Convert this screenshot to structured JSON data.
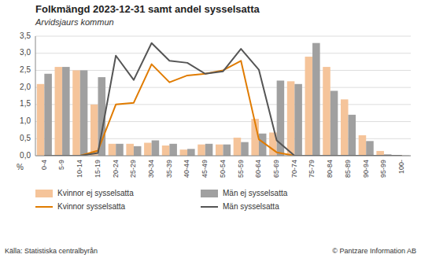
{
  "chart_data": {
    "type": "bar",
    "title": "Folkmängd 2023-12-31 samt andel sysselsatta",
    "subtitle": "Arvidsjaurs kommun",
    "ylabel": "%",
    "annotations": [
      "Källa: Statistiska centralbyrån",
      "© Pantzare Information AB"
    ],
    "categories": [
      "0-4",
      "5-9",
      "10-14",
      "15-19",
      "20-24",
      "25-29",
      "30-34",
      "35-39",
      "40-44",
      "45-49",
      "50-54",
      "55-59",
      "60-64",
      "65-69",
      "70-74",
      "75-79",
      "80-84",
      "85-89",
      "90-94",
      "95-99",
      "100-"
    ],
    "series": [
      {
        "name": "Kvinnor ej sysselsatta",
        "type": "bar",
        "color": "#f5c49a",
        "values": [
          2.1,
          2.6,
          2.5,
          1.5,
          0.35,
          0.35,
          0.38,
          0.3,
          0.18,
          0.33,
          0.33,
          0.53,
          1.08,
          0.68,
          2.18,
          2.9,
          2.6,
          1.65,
          0.6,
          0.14,
          0.02
        ]
      },
      {
        "name": "Män ej sysselsatta",
        "type": "bar",
        "color": "#a0a0a0",
        "values": [
          2.4,
          2.6,
          2.5,
          2.3,
          0.35,
          0.28,
          0.45,
          0.35,
          0.2,
          0.35,
          0.33,
          0.4,
          0.65,
          2.2,
          2.1,
          3.3,
          1.9,
          1.2,
          0.43,
          0.04,
          0.01
        ]
      },
      {
        "name": "Kvinnor sysselsatta",
        "type": "line",
        "color": "#e07b00",
        "values": [
          0.0,
          0.0,
          0.0,
          0.15,
          1.5,
          1.55,
          2.68,
          2.15,
          2.35,
          2.4,
          2.5,
          2.78,
          0.48,
          0.1,
          0.0,
          0.0,
          0.0,
          0.0,
          0.0,
          0.0,
          0.0
        ]
      },
      {
        "name": "Män sysselsatta",
        "type": "line",
        "color": "#555555",
        "values": [
          0.0,
          0.0,
          0.0,
          0.08,
          2.93,
          2.22,
          3.3,
          2.78,
          2.72,
          2.4,
          2.47,
          3.13,
          2.52,
          0.45,
          0.0,
          0.0,
          0.0,
          0.0,
          0.0,
          0.0,
          0.0
        ]
      }
    ],
    "ylim": [
      0.0,
      3.5
    ],
    "yticks": [
      {
        "value": 0.0,
        "label": "0,0"
      },
      {
        "value": 0.5,
        "label": "0,5"
      },
      {
        "value": 1.0,
        "label": "1,0"
      },
      {
        "value": 1.5,
        "label": "1,5"
      },
      {
        "value": 2.0,
        "label": "2,0"
      },
      {
        "value": 2.5,
        "label": "2,5"
      },
      {
        "value": 3.0,
        "label": "3,0"
      },
      {
        "value": 3.5,
        "label": "3,5"
      }
    ],
    "grid": true,
    "legend": "bottom"
  }
}
